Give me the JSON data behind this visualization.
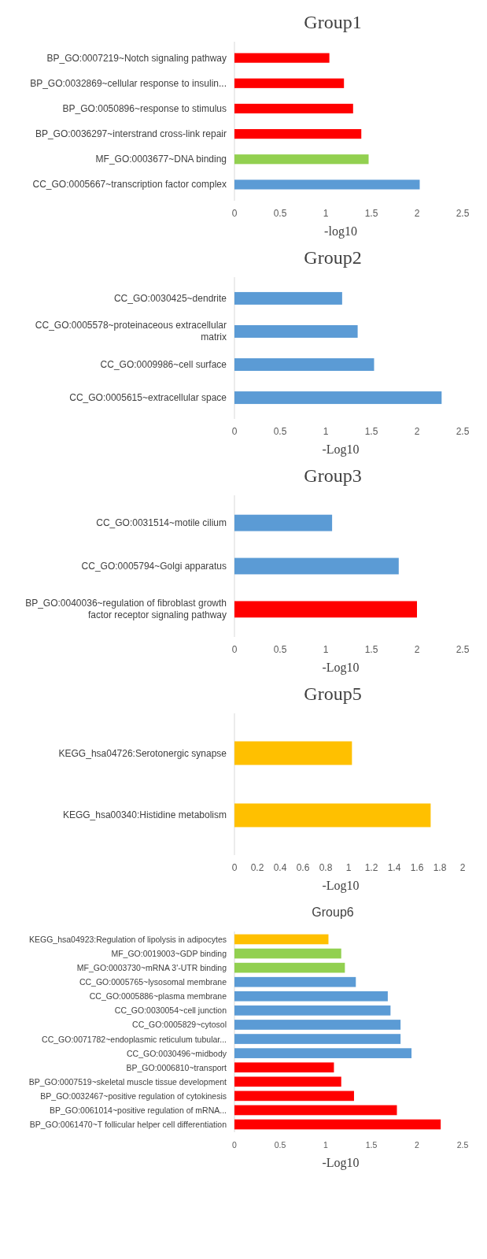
{
  "chart_data": [
    {
      "type": "bar",
      "orientation": "horizontal",
      "title": "Group1",
      "xlabel": "-log10",
      "categories": [
        "BP_GO:0007219~Notch signaling pathway",
        "BP_GO:0032869~cellular response to insulin...",
        "BP_GO:0050896~response to stimulus",
        "BP_GO:0036297~interstrand cross-link repair",
        "MF_GO:0003677~DNA binding",
        "CC_GO:0005667~transcription factor complex"
      ],
      "values": [
        1.04,
        1.2,
        1.3,
        1.39,
        1.47,
        2.03
      ],
      "colors": [
        "#ff0000",
        "#ff0000",
        "#ff0000",
        "#ff0000",
        "#92d050",
        "#5b9bd5"
      ],
      "xlim": [
        0,
        2.5
      ],
      "xticks": [
        0,
        0.5,
        1,
        1.5,
        2,
        2.5
      ]
    },
    {
      "type": "bar",
      "orientation": "horizontal",
      "title": "Group2",
      "xlabel": "-Log10",
      "categories": [
        "CC_GO:0030425~dendrite",
        "CC_GO:0005578~proteinaceous extracellular matrix",
        "CC_GO:0009986~cell surface",
        "CC_GO:0005615~extracellular space"
      ],
      "values": [
        1.18,
        1.35,
        1.53,
        2.27
      ],
      "colors": [
        "#5b9bd5",
        "#5b9bd5",
        "#5b9bd5",
        "#5b9bd5"
      ],
      "xlim": [
        0,
        2.5
      ],
      "xticks": [
        0,
        0.5,
        1,
        1.5,
        2,
        2.5
      ]
    },
    {
      "type": "bar",
      "orientation": "horizontal",
      "title": "Group3",
      "xlabel": "-Log10",
      "categories": [
        "CC_GO:0031514~motile cilium",
        "CC_GO:0005794~Golgi apparatus",
        "BP_GO:0040036~regulation of fibroblast growth factor receptor signaling pathway"
      ],
      "values": [
        1.07,
        1.8,
        2.0
      ],
      "colors": [
        "#5b9bd5",
        "#5b9bd5",
        "#ff0000"
      ],
      "xlim": [
        0,
        2.5
      ],
      "xticks": [
        0,
        0.5,
        1,
        1.5,
        2,
        2.5
      ]
    },
    {
      "type": "bar",
      "orientation": "horizontal",
      "title": "Group5",
      "xlabel": "-Log10",
      "categories": [
        "KEGG_hsa04726:Serotonergic synapse",
        "KEGG_hsa00340:Histidine metabolism"
      ],
      "values": [
        1.03,
        1.72
      ],
      "colors": [
        "#ffc000",
        "#ffc000"
      ],
      "xlim": [
        0,
        2
      ],
      "xticks": [
        0,
        0.2,
        0.4,
        0.6,
        0.8,
        1,
        1.2,
        1.4,
        1.6,
        1.8,
        2
      ]
    },
    {
      "type": "bar",
      "orientation": "horizontal",
      "title": "Group6",
      "xlabel": "-Log10",
      "categories": [
        "KEGG_hsa04923:Regulation of lipolysis in adipocytes",
        "MF_GO:0019003~GDP binding",
        "MF_GO:0003730~mRNA 3'-UTR binding",
        "CC_GO:0005765~lysosomal membrane",
        "CC_GO:0005886~plasma membrane",
        "CC_GO:0030054~cell junction",
        "CC_GO:0005829~cytosol",
        "CC_GO:0071782~endoplasmic reticulum tubular...",
        "CC_GO:0030496~midbody",
        "BP_GO:0006810~transport",
        "BP_GO:0007519~skeletal muscle tissue development",
        "BP_GO:0032467~positive regulation of cytokinesis",
        "BP_GO:0061014~positive regulation of mRNA...",
        "BP_GO:0061470~T follicular helper cell differentiation"
      ],
      "values": [
        1.03,
        1.17,
        1.21,
        1.33,
        1.68,
        1.71,
        1.82,
        1.82,
        1.94,
        1.09,
        1.17,
        1.31,
        1.78,
        2.26
      ],
      "colors": [
        "#ffc000",
        "#92d050",
        "#92d050",
        "#5b9bd5",
        "#5b9bd5",
        "#5b9bd5",
        "#5b9bd5",
        "#5b9bd5",
        "#5b9bd5",
        "#ff0000",
        "#ff0000",
        "#ff0000",
        "#ff0000",
        "#ff0000"
      ],
      "xlim": [
        0,
        2.5
      ],
      "xticks": [
        0,
        0.5,
        1,
        1.5,
        2,
        2.5
      ]
    }
  ]
}
